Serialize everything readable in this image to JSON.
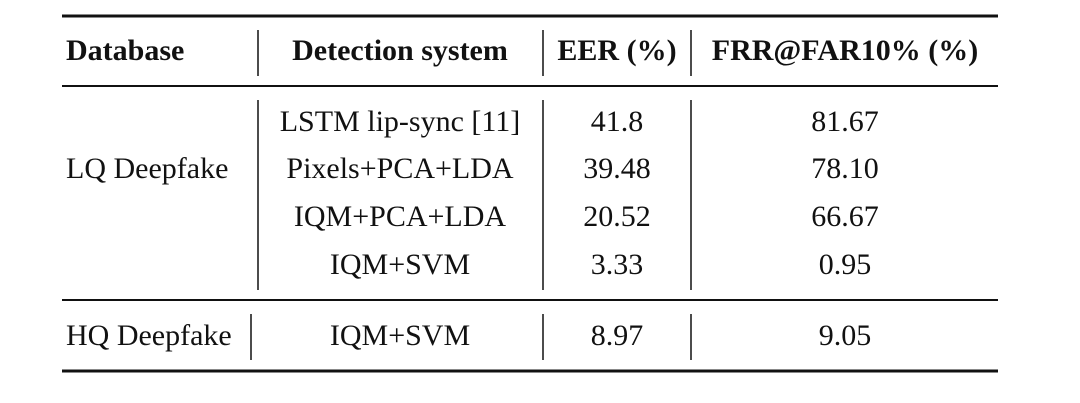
{
  "table": {
    "header": [
      "Database",
      "Detection system",
      "EER (%)",
      "FRR@FAR10% (%)"
    ],
    "groups": [
      {
        "database": "LQ Deepfake",
        "rows": [
          [
            "LSTM lip-sync [11]",
            "41.8",
            "81.67"
          ],
          [
            "Pixels+PCA+LDA",
            "39.48",
            "78.10"
          ],
          [
            "IQM+PCA+LDA",
            "20.52",
            "66.67"
          ],
          [
            "IQM+SVM",
            "3.33",
            "0.95"
          ]
        ]
      },
      {
        "database": "HQ Deepfake",
        "rows": [
          [
            "IQM+SVM",
            "8.97",
            "9.05"
          ]
        ]
      }
    ]
  }
}
